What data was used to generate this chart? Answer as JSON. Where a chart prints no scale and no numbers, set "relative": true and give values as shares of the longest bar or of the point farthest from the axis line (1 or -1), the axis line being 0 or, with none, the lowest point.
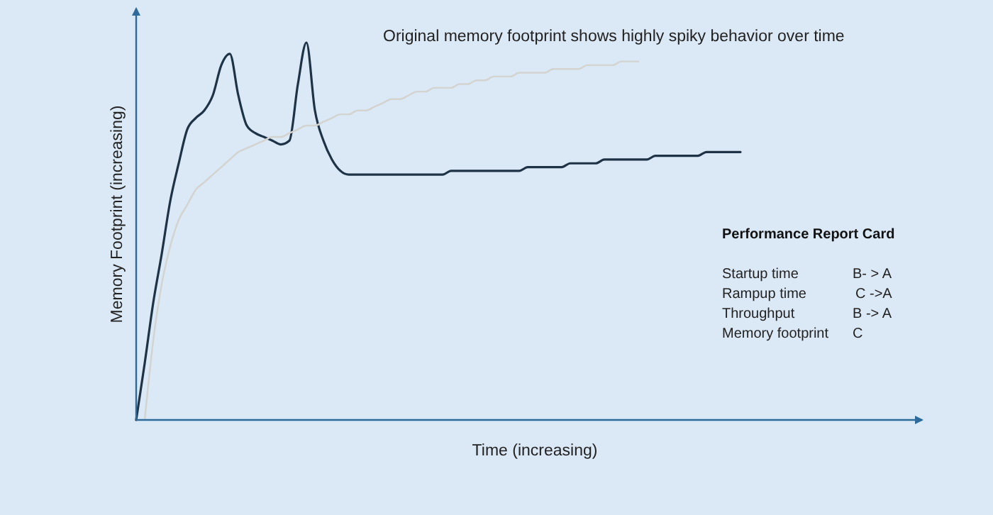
{
  "chart_data": {
    "type": "line",
    "relative": true,
    "title": "Original memory footprint shows highly spiky behavior over time",
    "xlabel": "Time (increasing)",
    "ylabel": "Memory Footprint  (increasing)",
    "line_style": "solid",
    "categories": [
      null,
      null,
      null,
      null,
      null,
      null,
      null,
      null,
      null,
      null,
      null,
      null,
      null,
      null,
      null,
      null,
      null,
      null,
      null,
      null,
      null,
      null,
      null,
      null,
      null,
      null,
      null,
      null,
      null,
      null,
      null,
      null,
      null,
      null,
      null,
      null,
      null,
      null,
      null,
      null,
      null,
      null,
      null,
      null,
      null,
      null,
      null,
      null,
      null,
      null,
      null,
      null,
      null,
      null,
      null,
      null,
      null,
      null,
      null,
      null,
      null,
      null,
      null,
      null,
      null,
      null,
      null,
      null,
      null,
      null,
      null,
      null,
      null,
      null,
      null,
      null,
      null,
      null,
      null,
      null,
      null,
      null,
      null,
      null,
      null,
      null,
      null,
      null,
      null,
      null,
      null,
      null,
      null
    ],
    "series": [
      {
        "color": "#1f3347",
        "values": [
          0,
          0.15,
          0.31,
          0.44,
          0.58,
          0.68,
          0.77,
          0.8,
          0.82,
          0.86,
          0.94,
          0.97,
          0.86,
          0.78,
          0.76,
          0.75,
          0.74,
          0.73,
          0.74,
          0.89,
          1,
          0.82,
          0.74,
          0.69,
          0.66,
          0.65,
          0.65,
          0.65,
          0.65,
          0.65,
          0.65,
          0.65,
          0.65,
          0.65,
          0.65,
          0.65,
          0.65,
          0.66,
          0.66,
          0.66,
          0.66,
          0.66,
          0.66,
          0.66,
          0.66,
          0.66,
          0.67,
          0.67,
          0.67,
          0.67,
          0.67,
          0.68,
          0.68,
          0.68,
          0.68,
          0.69,
          0.69,
          0.69,
          0.69,
          0.69,
          0.69,
          0.7,
          0.7,
          0.7,
          0.7,
          0.7,
          0.7,
          0.71,
          0.71,
          0.71,
          0.71,
          0.71,
          null,
          null,
          null,
          null,
          null,
          null,
          null,
          null,
          null,
          null,
          null,
          null,
          null,
          null,
          null,
          null,
          null,
          null,
          null,
          null,
          null
        ]
      },
      {
        "color": "#d3d3cf",
        "values": [
          null,
          0,
          0.21,
          0.36,
          0.46,
          0.53,
          0.57,
          0.61,
          0.63,
          0.65,
          0.67,
          0.69,
          0.71,
          0.72,
          0.73,
          0.74,
          0.75,
          0.75,
          0.76,
          0.77,
          0.78,
          0.78,
          0.79,
          0.8,
          0.81,
          0.81,
          0.82,
          0.82,
          0.83,
          0.84,
          0.85,
          0.85,
          0.86,
          0.87,
          0.87,
          0.88,
          0.88,
          0.88,
          0.89,
          0.89,
          0.9,
          0.9,
          0.91,
          0.91,
          0.91,
          0.92,
          0.92,
          0.92,
          0.92,
          0.93,
          0.93,
          0.93,
          0.93,
          0.94,
          0.94,
          0.94,
          0.94,
          0.95,
          0.95,
          0.95,
          null,
          null,
          null,
          null,
          null,
          null,
          null,
          null,
          null,
          null,
          null,
          null,
          null,
          null,
          null,
          null,
          null,
          null,
          null,
          null,
          null,
          null,
          null,
          null,
          null,
          null,
          null,
          null,
          null,
          null,
          null,
          null,
          null
        ]
      }
    ],
    "annotations": [
      "Performance Report Card",
      "Startup time",
      "B- > A",
      "Rampup time",
      "C ->A",
      "Throughput",
      "B -> A",
      "Memory footprint",
      "C"
    ]
  }
}
